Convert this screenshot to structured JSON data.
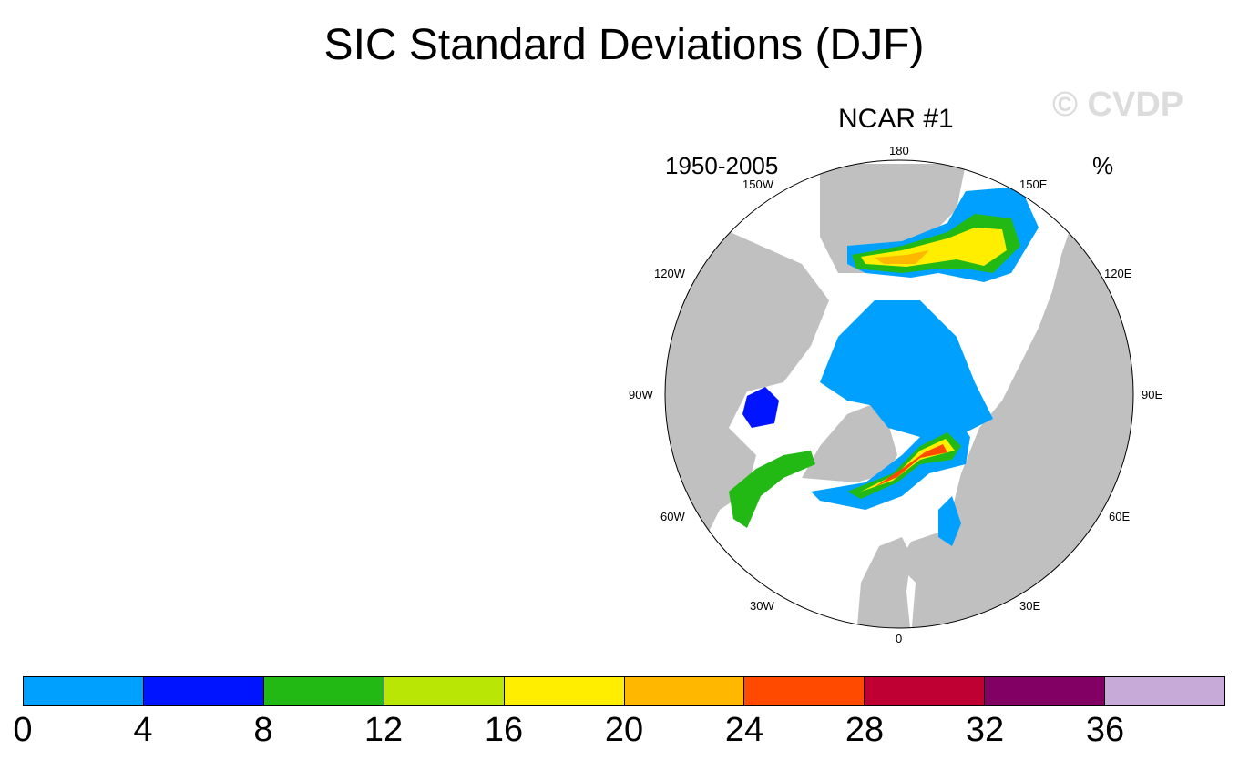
{
  "title": "SIC Standard Deviations (DJF)",
  "watermark": "© CVDP",
  "panel": {
    "title": "NCAR #1",
    "period": "1950-2005",
    "units": "%"
  },
  "longitude_labels": {
    "lon_180": "180",
    "lon_150E": "150E",
    "lon_120E": "120E",
    "lon_90E": "90E",
    "lon_60E": "60E",
    "lon_30E": "30E",
    "lon_0": "0",
    "lon_30W": "30W",
    "lon_60W": "60W",
    "lon_90W": "90W",
    "lon_120W": "120W",
    "lon_150W": "150W"
  },
  "colorbar": {
    "ticks": [
      "0",
      "4",
      "8",
      "12",
      "16",
      "20",
      "24",
      "28",
      "32",
      "36"
    ],
    "colors": [
      "#00a0ff",
      "#0014ff",
      "#22b914",
      "#b9e604",
      "#ffee00",
      "#ffb700",
      "#ff4a00",
      "#be0032",
      "#820064",
      "#c8aad8"
    ]
  },
  "map_colors": {
    "land": "#c0c0c0",
    "ocean": "#ffffff"
  }
}
